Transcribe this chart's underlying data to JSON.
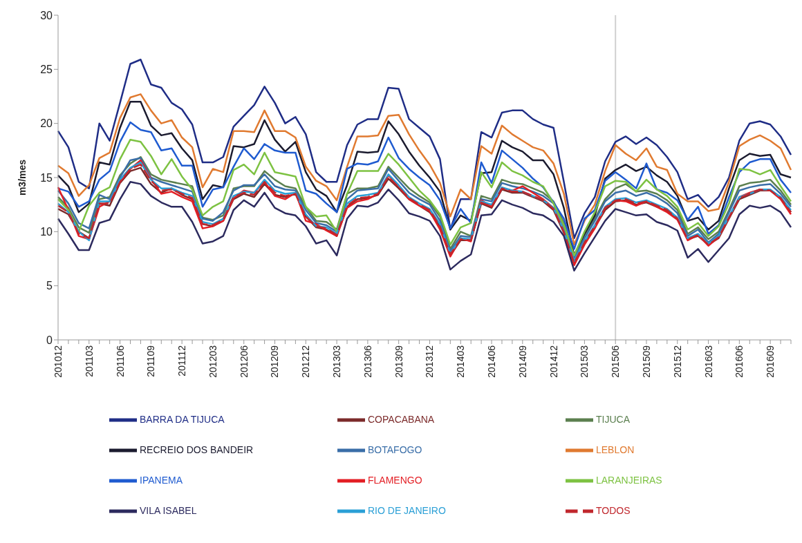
{
  "chart_data": {
    "type": "line",
    "ylabel": "m3/mes",
    "ylim": [
      0,
      30
    ],
    "yticks": [
      0,
      5,
      10,
      15,
      20,
      25,
      30
    ],
    "grid": false,
    "legend": "bottom",
    "marker": "none",
    "categories": [
      "201012",
      null,
      null,
      "201103",
      null,
      null,
      "201106",
      null,
      null,
      "201109",
      null,
      null,
      "201112",
      null,
      null,
      "201203",
      null,
      null,
      "201206",
      null,
      null,
      "201209",
      null,
      null,
      "201212",
      null,
      null,
      "201303",
      null,
      null,
      "201306",
      null,
      null,
      "201309",
      null,
      null,
      "201312",
      null,
      null,
      "201403",
      null,
      null,
      "201406",
      null,
      null,
      "201409",
      null,
      null,
      "201412",
      null,
      null,
      "201503",
      null,
      null,
      "201506",
      null,
      null,
      "201509",
      null,
      null,
      "201512",
      null,
      null,
      "201603",
      null,
      null,
      "201606",
      null,
      null,
      "201609",
      null,
      null
    ],
    "ref_lines": [
      {
        "axis": "x",
        "value": "201506",
        "color": "#d0d0d0"
      }
    ],
    "series": [
      {
        "name": "BARRA DA TIJUCA",
        "color": "#1f2d86",
        "values": [
          19.3,
          17.8,
          14.6,
          14.0,
          20.0,
          18.4,
          21.9,
          25.5,
          25.9,
          23.6,
          23.3,
          21.9,
          21.3,
          19.9,
          16.4,
          16.4,
          16.9,
          19.7,
          20.7,
          21.7,
          23.4,
          21.9,
          20.0,
          20.6,
          19.0,
          15.5,
          14.6,
          14.6,
          18.0,
          19.9,
          20.4,
          20.4,
          23.3,
          23.2,
          20.4,
          19.6,
          18.8,
          16.7,
          10.2,
          13.0,
          13.0,
          19.2,
          18.7,
          21.0,
          21.2,
          21.2,
          20.4,
          19.9,
          19.6,
          14.6,
          9.4,
          11.7,
          13.2,
          16.5,
          18.3,
          18.8,
          18.1,
          18.7,
          18.0,
          16.9,
          15.5,
          13.0,
          13.4,
          12.3,
          13.2,
          15.0,
          18.4,
          20.0,
          20.2,
          19.9,
          18.8,
          17.1
        ]
      },
      {
        "name": "COPACABANA",
        "color": "#7b2a2a",
        "values": [
          12.1,
          11.6,
          10.0,
          9.4,
          12.6,
          12.4,
          14.5,
          15.6,
          15.9,
          14.4,
          13.6,
          14.0,
          13.4,
          13.0,
          10.7,
          10.5,
          11.0,
          13.0,
          13.5,
          13.2,
          14.4,
          13.4,
          13.2,
          13.5,
          11.4,
          10.4,
          10.2,
          9.6,
          12.3,
          13.0,
          13.1,
          13.4,
          14.9,
          14.0,
          13.0,
          12.4,
          11.8,
          10.5,
          7.8,
          9.2,
          9.2,
          12.6,
          12.2,
          13.9,
          13.6,
          13.6,
          13.2,
          12.8,
          12.0,
          9.9,
          7.0,
          8.9,
          10.4,
          12.0,
          12.8,
          12.9,
          12.5,
          12.7,
          12.3,
          11.9,
          11.2,
          9.3,
          9.6,
          8.8,
          9.4,
          11.2,
          13.0,
          13.4,
          13.8,
          13.8,
          13.2,
          11.8
        ]
      },
      {
        "name": "TIJUCA",
        "color": "#5b7f4f",
        "values": [
          13.2,
          12.2,
          10.4,
          9.9,
          13.0,
          13.2,
          15.2,
          16.3,
          16.9,
          15.3,
          14.8,
          14.6,
          14.4,
          14.2,
          11.3,
          11.1,
          11.5,
          14.0,
          14.2,
          14.2,
          15.6,
          14.8,
          14.2,
          14.0,
          12.3,
          11.0,
          10.9,
          10.2,
          13.5,
          14.0,
          14.0,
          14.2,
          16.0,
          15.0,
          14.0,
          13.3,
          12.7,
          11.4,
          8.4,
          10.0,
          9.6,
          13.3,
          13.0,
          14.8,
          14.5,
          14.4,
          14.0,
          13.6,
          12.8,
          10.8,
          7.8,
          9.7,
          11.2,
          13.0,
          14.0,
          14.4,
          13.7,
          13.8,
          13.5,
          12.9,
          12.0,
          9.8,
          10.4,
          9.3,
          10.0,
          12.0,
          14.2,
          14.5,
          14.6,
          14.8,
          13.8,
          12.5
        ]
      },
      {
        "name": "RECREIO DOS BANDEIR",
        "color": "#1b1b2f",
        "values": [
          15.2,
          14.2,
          11.8,
          12.6,
          16.4,
          16.2,
          19.6,
          22.0,
          22.0,
          19.8,
          18.9,
          19.1,
          17.7,
          16.6,
          13.0,
          14.3,
          14.1,
          17.9,
          17.8,
          18.1,
          20.3,
          18.5,
          17.4,
          18.3,
          15.5,
          13.9,
          13.3,
          11.8,
          14.3,
          17.4,
          17.3,
          17.4,
          20.2,
          19.0,
          17.4,
          16.1,
          15.0,
          13.7,
          10.2,
          11.5,
          11.0,
          15.4,
          15.5,
          18.4,
          17.8,
          17.4,
          16.6,
          16.6,
          15.3,
          12.2,
          7.8,
          9.8,
          11.5,
          14.9,
          15.7,
          16.2,
          15.6,
          16.0,
          15.2,
          14.6,
          13.3,
          11.0,
          11.3,
          10.2,
          11.0,
          14.0,
          16.6,
          17.2,
          17.0,
          17.1,
          15.3,
          15.0
        ]
      },
      {
        "name": "BOTAFOGO",
        "color": "#3a6ea8",
        "values": [
          13.8,
          12.6,
          10.8,
          10.3,
          13.4,
          13.0,
          15.0,
          16.6,
          16.8,
          15.0,
          14.6,
          14.3,
          14.0,
          13.7,
          11.2,
          11.0,
          11.8,
          13.8,
          14.3,
          14.3,
          15.3,
          14.2,
          13.9,
          13.8,
          12.0,
          10.8,
          10.6,
          10.0,
          13.0,
          13.8,
          13.9,
          14.0,
          15.8,
          14.7,
          13.6,
          13.0,
          12.5,
          11.0,
          8.2,
          9.6,
          9.5,
          13.0,
          12.8,
          14.5,
          14.2,
          14.0,
          13.7,
          13.3,
          12.6,
          10.5,
          7.6,
          9.4,
          11.0,
          12.8,
          13.6,
          13.8,
          13.3,
          13.6,
          13.2,
          12.6,
          11.7,
          9.6,
          10.2,
          9.0,
          9.8,
          11.8,
          13.8,
          14.1,
          14.3,
          14.4,
          13.5,
          12.3
        ]
      },
      {
        "name": "LEBLON",
        "color": "#e07a30",
        "values": [
          16.1,
          15.4,
          13.3,
          14.3,
          16.8,
          17.3,
          20.5,
          22.4,
          22.7,
          21.2,
          20.0,
          20.3,
          18.7,
          17.8,
          14.1,
          15.8,
          15.5,
          19.3,
          19.3,
          19.2,
          21.2,
          19.3,
          19.3,
          18.7,
          16.0,
          14.7,
          14.2,
          12.9,
          16.0,
          18.8,
          18.8,
          18.9,
          20.7,
          20.8,
          19.0,
          17.5,
          16.2,
          14.5,
          11.4,
          13.9,
          13.0,
          17.9,
          17.2,
          19.8,
          19.0,
          18.4,
          17.8,
          17.5,
          16.3,
          13.5,
          8.8,
          11.0,
          12.5,
          15.6,
          18.0,
          17.2,
          16.6,
          17.7,
          16.0,
          15.7,
          13.5,
          12.8,
          12.8,
          11.9,
          12.1,
          14.6,
          17.9,
          18.5,
          18.9,
          18.4,
          17.7,
          15.7
        ]
      },
      {
        "name": "IPANEMA",
        "color": "#1f5bd0",
        "values": [
          14.0,
          13.7,
          12.3,
          12.8,
          14.8,
          15.6,
          18.3,
          20.1,
          19.4,
          19.2,
          17.5,
          17.7,
          16.1,
          16.1,
          12.3,
          13.9,
          14.1,
          16.0,
          17.7,
          16.7,
          18.1,
          17.5,
          17.3,
          17.3,
          13.8,
          13.5,
          12.6,
          11.8,
          15.8,
          16.3,
          16.2,
          16.5,
          18.7,
          16.8,
          15.8,
          15.0,
          14.3,
          12.9,
          10.3,
          12.1,
          10.8,
          16.4,
          14.5,
          17.5,
          16.7,
          15.9,
          14.9,
          14.1,
          12.7,
          11.2,
          8.4,
          11.2,
          12.0,
          14.7,
          15.5,
          14.8,
          14.0,
          16.3,
          13.9,
          13.6,
          12.9,
          11.1,
          12.3,
          9.8,
          10.6,
          13.2,
          15.5,
          16.4,
          16.7,
          16.7,
          14.8,
          13.6
        ]
      },
      {
        "name": "FLAMENGO",
        "color": "#e31e24",
        "values": [
          14.1,
          12.0,
          9.6,
          9.3,
          12.3,
          12.8,
          14.6,
          15.8,
          16.6,
          14.9,
          13.5,
          13.7,
          13.2,
          12.8,
          10.3,
          10.5,
          11.0,
          13.1,
          13.8,
          13.6,
          14.6,
          13.3,
          13.0,
          13.6,
          11.0,
          10.7,
          10.1,
          9.6,
          12.2,
          12.8,
          13.0,
          13.5,
          15.2,
          14.2,
          13.0,
          12.4,
          11.9,
          10.2,
          7.7,
          9.4,
          9.1,
          12.9,
          12.3,
          14.0,
          13.8,
          14.2,
          13.6,
          13.0,
          12.2,
          10.1,
          6.9,
          8.8,
          10.3,
          12.2,
          12.9,
          12.8,
          12.4,
          12.8,
          12.3,
          11.8,
          11.1,
          9.2,
          9.7,
          8.7,
          9.5,
          11.3,
          13.2,
          13.6,
          13.9,
          13.8,
          13.0,
          11.6
        ]
      },
      {
        "name": "LARANJEIRAS",
        "color": "#7dc242",
        "values": [
          13.0,
          12.0,
          10.0,
          12.4,
          13.6,
          14.1,
          16.7,
          18.5,
          18.3,
          17.0,
          15.3,
          16.7,
          15.1,
          13.9,
          11.5,
          12.3,
          12.8,
          15.7,
          16.2,
          15.3,
          17.3,
          15.5,
          15.3,
          15.1,
          12.3,
          11.4,
          11.5,
          10.0,
          13.5,
          15.6,
          15.6,
          15.6,
          17.2,
          16.2,
          15.0,
          13.8,
          12.9,
          11.6,
          8.8,
          10.4,
          10.8,
          15.5,
          14.1,
          16.4,
          15.6,
          15.2,
          14.6,
          14.2,
          12.6,
          10.6,
          7.8,
          10.0,
          11.8,
          14.2,
          14.7,
          14.6,
          13.7,
          14.8,
          13.9,
          13.3,
          12.3,
          10.2,
          10.8,
          9.6,
          10.5,
          12.6,
          15.8,
          15.7,
          15.3,
          15.7,
          14.2,
          12.8
        ]
      },
      {
        "name": "VILA ISABEL",
        "color": "#2c2a5e",
        "values": [
          11.2,
          9.8,
          8.3,
          8.3,
          10.8,
          11.1,
          13.0,
          14.6,
          14.4,
          13.3,
          12.7,
          12.3,
          12.3,
          10.9,
          8.9,
          9.1,
          9.6,
          12.0,
          12.9,
          12.3,
          13.6,
          12.2,
          11.7,
          11.5,
          10.5,
          8.9,
          9.2,
          7.8,
          11.2,
          12.4,
          12.3,
          12.7,
          13.9,
          12.9,
          11.7,
          11.4,
          11.0,
          9.6,
          6.5,
          7.3,
          7.9,
          11.5,
          11.6,
          12.9,
          12.5,
          12.2,
          11.7,
          11.5,
          10.9,
          9.6,
          6.4,
          8.0,
          9.5,
          11.0,
          12.1,
          11.8,
          11.5,
          11.6,
          10.9,
          10.6,
          10.1,
          7.6,
          8.4,
          7.2,
          8.3,
          9.4,
          11.6,
          12.4,
          12.2,
          12.4,
          11.8,
          10.4
        ]
      },
      {
        "name": "RIO DE JANEIRO",
        "color": "#2a9fd6",
        "values": [
          12.6,
          11.8,
          10.0,
          9.2,
          12.8,
          12.8,
          14.8,
          15.9,
          16.4,
          14.8,
          14.0,
          14.0,
          13.6,
          13.3,
          10.9,
          10.7,
          11.2,
          13.3,
          13.7,
          13.6,
          14.8,
          13.8,
          13.5,
          13.6,
          11.6,
          10.5,
          10.4,
          9.8,
          12.6,
          13.3,
          13.4,
          13.6,
          15.3,
          14.3,
          13.2,
          12.6,
          12.1,
          10.7,
          8.0,
          9.4,
          9.3,
          12.8,
          12.5,
          14.1,
          13.8,
          13.7,
          13.3,
          12.9,
          12.2,
          10.1,
          7.3,
          9.1,
          10.6,
          12.3,
          13.0,
          13.1,
          12.7,
          12.9,
          12.5,
          12.1,
          11.3,
          9.4,
          9.8,
          8.9,
          9.6,
          11.4,
          13.2,
          13.5,
          13.9,
          13.9,
          13.2,
          12.0
        ]
      },
      {
        "name": "TODOS",
        "color": "#c0272d",
        "line_style": "dashed",
        "values": [
          12.4,
          11.8,
          9.8,
          9.4,
          12.6,
          12.6,
          14.6,
          15.8,
          16.2,
          14.7,
          13.8,
          13.9,
          13.5,
          13.1,
          10.7,
          10.6,
          11.1,
          13.2,
          13.6,
          13.4,
          14.6,
          13.6,
          13.3,
          13.5,
          11.4,
          10.5,
          10.3,
          9.7,
          12.4,
          13.1,
          13.2,
          13.5,
          15.1,
          14.1,
          13.1,
          12.5,
          12.0,
          10.5,
          7.9,
          9.3,
          9.2,
          12.7,
          12.3,
          14.0,
          13.7,
          13.7,
          13.3,
          12.9,
          12.1,
          10.0,
          7.1,
          9.0,
          10.5,
          12.2,
          12.9,
          13.0,
          12.6,
          12.8,
          12.4,
          12.0,
          11.2,
          9.3,
          9.7,
          8.8,
          9.5,
          11.3,
          13.1,
          13.5,
          13.9,
          13.8,
          13.1,
          11.8
        ]
      }
    ]
  }
}
